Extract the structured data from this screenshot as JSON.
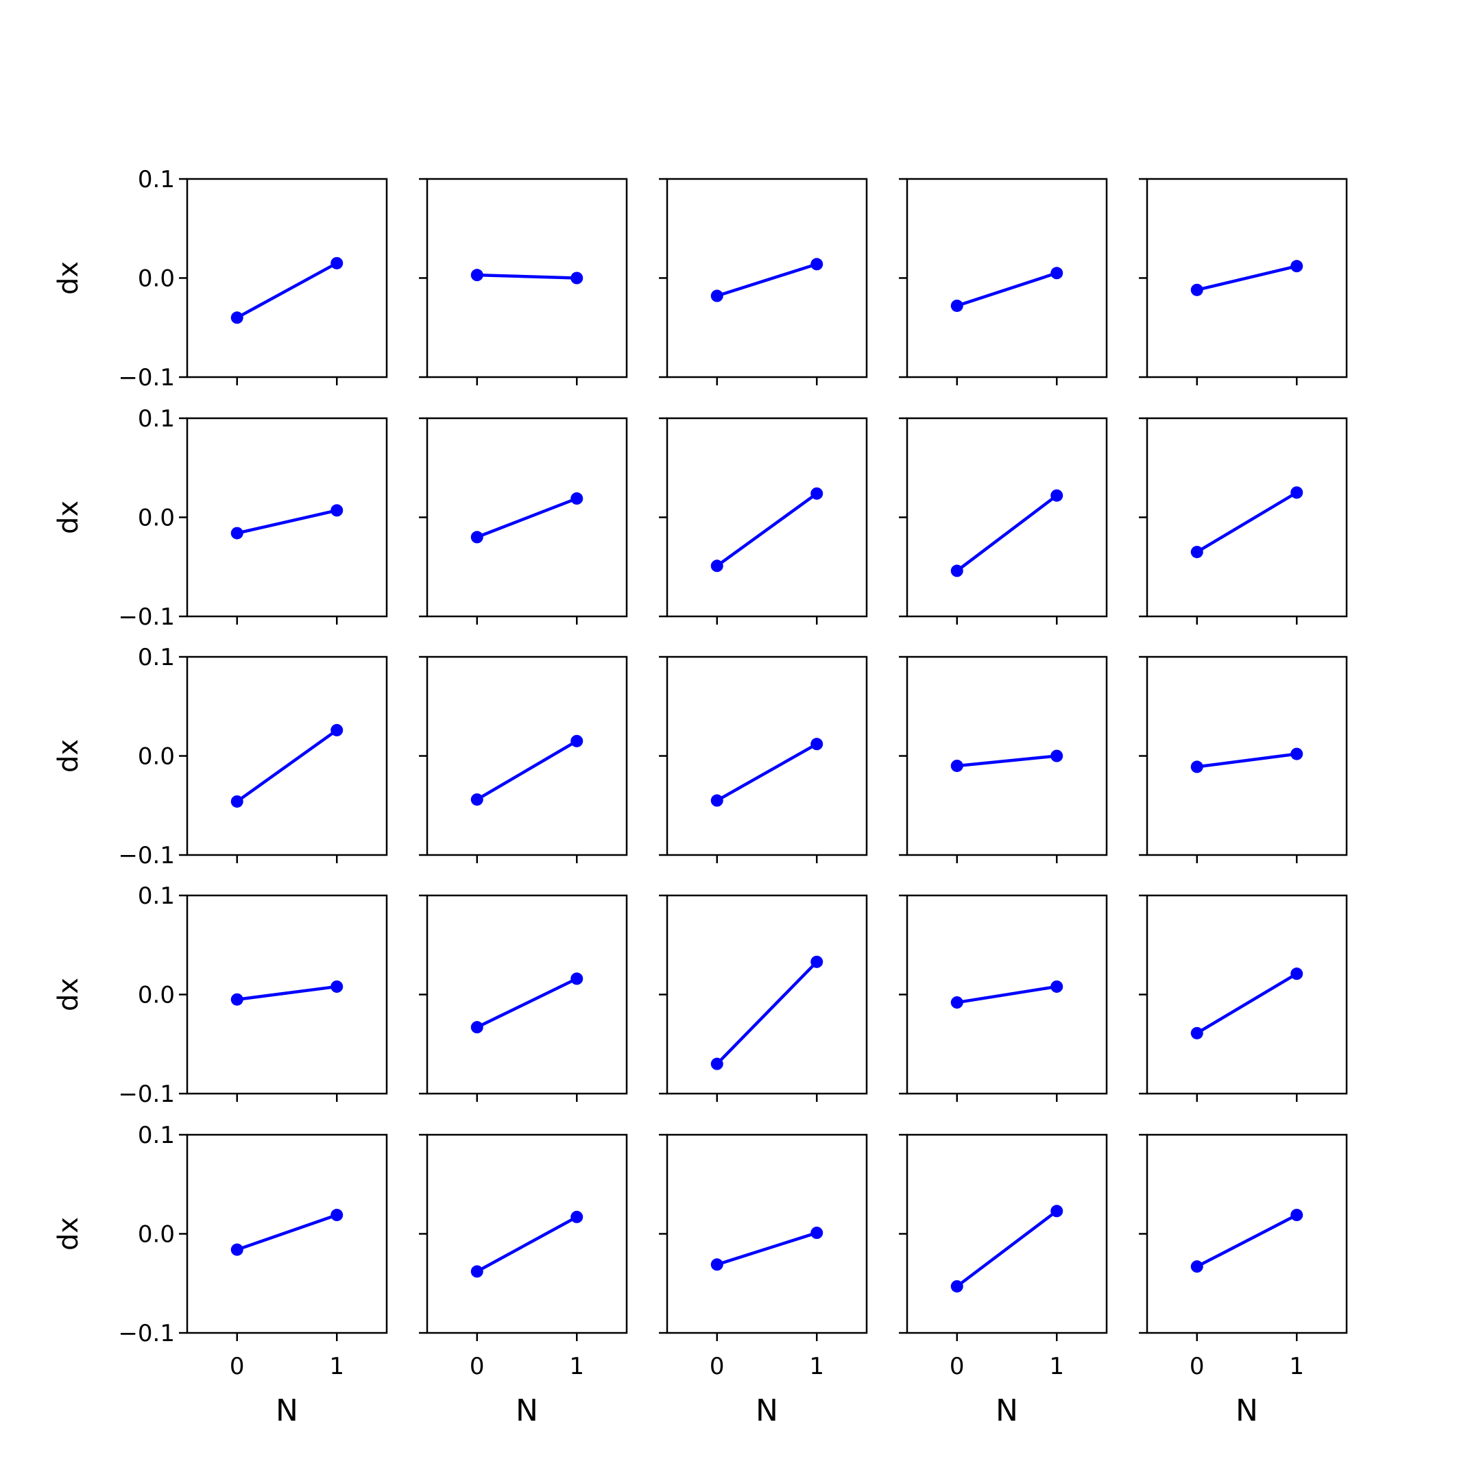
{
  "chart_data": {
    "type": "line",
    "layout": "5x5 small multiples",
    "xlabel": "N",
    "ylabel": "dx",
    "x": [
      0,
      1
    ],
    "xticks": [
      0,
      1
    ],
    "xlim": [
      -0.5,
      1.5
    ],
    "ylim": [
      -0.1,
      0.1
    ],
    "yticks": [
      -0.1,
      0.0,
      0.1
    ],
    "ytick_labels": [
      "−0.1",
      "0.0",
      "0.1"
    ],
    "xtick_labels": [
      "0",
      "1"
    ],
    "grid": false,
    "line_color": "#0000ff",
    "panels": [
      {
        "values": [
          -0.04,
          0.015
        ]
      },
      {
        "values": [
          0.003,
          0.0
        ]
      },
      {
        "values": [
          -0.018,
          0.014
        ]
      },
      {
        "values": [
          -0.028,
          0.005
        ]
      },
      {
        "values": [
          -0.012,
          0.012
        ]
      },
      {
        "values": [
          -0.016,
          0.007
        ]
      },
      {
        "values": [
          -0.02,
          0.019
        ]
      },
      {
        "values": [
          -0.049,
          0.024
        ]
      },
      {
        "values": [
          -0.054,
          0.022
        ]
      },
      {
        "values": [
          -0.035,
          0.025
        ]
      },
      {
        "values": [
          -0.046,
          0.026
        ]
      },
      {
        "values": [
          -0.044,
          0.015
        ]
      },
      {
        "values": [
          -0.045,
          0.012
        ]
      },
      {
        "values": [
          -0.01,
          0.0
        ]
      },
      {
        "values": [
          -0.011,
          0.002
        ]
      },
      {
        "values": [
          -0.005,
          0.008
        ]
      },
      {
        "values": [
          -0.033,
          0.016
        ]
      },
      {
        "values": [
          -0.07,
          0.033
        ]
      },
      {
        "values": [
          -0.008,
          0.008
        ]
      },
      {
        "values": [
          -0.039,
          0.021
        ]
      },
      {
        "values": [
          -0.016,
          0.019
        ]
      },
      {
        "values": [
          -0.038,
          0.017
        ]
      },
      {
        "values": [
          -0.031,
          0.001
        ]
      },
      {
        "values": [
          -0.053,
          0.023
        ]
      },
      {
        "values": [
          -0.033,
          0.019
        ]
      }
    ]
  }
}
